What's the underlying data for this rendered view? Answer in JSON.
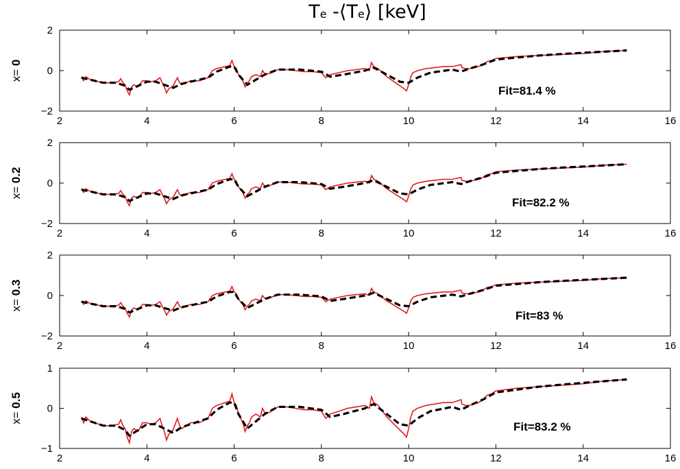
{
  "title": {
    "symbol": "T",
    "subscript": "e",
    "middle": " -⟨T",
    "subscript2": "e",
    "suffix": "⟩ [keV]"
  },
  "colors": {
    "measured": "#e41a1c",
    "fit": "#000000",
    "axes": "#000000"
  },
  "chart_data": [
    {
      "type": "line",
      "ylabel_prefix": "x= ",
      "ylabel_value": "0",
      "fit_label": "Fit=81.4 %",
      "xlim": [
        2,
        16
      ],
      "ylim": [
        -2,
        2
      ],
      "xticks": [
        2,
        4,
        6,
        8,
        10,
        12,
        14,
        16
      ],
      "yticks": [
        -2,
        0,
        2
      ],
      "amp": 1.0,
      "series": [
        {
          "style": "solid-red",
          "x": [
            2.5,
            2.55,
            2.6,
            2.7,
            2.8,
            3.0,
            3.2,
            3.35,
            3.4,
            3.45,
            3.5,
            3.55,
            3.6,
            3.65,
            3.7,
            3.8,
            3.9,
            4.0,
            4.1,
            4.2,
            4.3,
            4.35,
            4.4,
            4.45,
            4.5,
            4.6,
            4.7,
            4.75,
            4.8,
            4.9,
            5.0,
            5.2,
            5.4,
            5.5,
            5.6,
            5.8,
            5.9,
            5.95,
            6.0,
            6.05,
            6.1,
            6.2,
            6.25,
            6.3,
            6.35,
            6.4,
            6.5,
            6.6,
            6.65,
            6.7,
            6.8,
            7.0,
            7.2,
            7.4,
            7.6,
            7.8,
            8.0,
            8.1,
            8.2,
            8.4,
            8.6,
            8.8,
            9.0,
            9.1,
            9.15,
            9.2,
            9.3,
            9.5,
            9.7,
            9.8,
            9.9,
            9.95,
            10.0,
            10.05,
            10.1,
            10.2,
            10.4,
            10.6,
            10.8,
            11.0,
            11.2,
            11.22,
            11.3,
            11.4,
            11.6,
            11.7,
            11.8,
            11.9,
            12.0,
            12.5,
            13.0,
            13.5,
            14.0,
            14.5,
            15.0
          ],
          "y": [
            -0.3,
            -0.5,
            -0.3,
            -0.45,
            -0.5,
            -0.6,
            -0.6,
            -0.55,
            -0.4,
            -0.6,
            -0.7,
            -1.0,
            -1.2,
            -0.8,
            -0.7,
            -0.8,
            -0.5,
            -0.5,
            -0.55,
            -0.5,
            -0.35,
            -0.6,
            -0.8,
            -1.1,
            -0.9,
            -0.75,
            -0.35,
            -0.6,
            -0.7,
            -0.6,
            -0.5,
            -0.5,
            -0.35,
            0.0,
            0.1,
            0.2,
            0.25,
            0.5,
            0.2,
            0.1,
            -0.2,
            -0.5,
            -0.8,
            -0.6,
            -0.5,
            -0.3,
            -0.2,
            -0.3,
            0.0,
            -0.15,
            -0.15,
            0.05,
            0.05,
            0.0,
            -0.05,
            -0.05,
            -0.1,
            -0.35,
            -0.2,
            -0.1,
            0.0,
            0.05,
            0.1,
            0.0,
            0.4,
            0.2,
            0.1,
            -0.3,
            -0.6,
            -0.75,
            -0.9,
            -1.0,
            -0.7,
            -0.3,
            -0.1,
            0.0,
            0.1,
            0.15,
            0.2,
            0.2,
            0.3,
            0.15,
            0.1,
            0.1,
            0.2,
            0.3,
            0.45,
            0.5,
            0.6,
            0.7,
            0.75,
            0.8,
            0.85,
            0.95,
            1.0
          ]
        },
        {
          "style": "dashed-black",
          "x": [
            2.5,
            2.7,
            3.0,
            3.3,
            3.5,
            3.6,
            3.8,
            4.0,
            4.2,
            4.4,
            4.6,
            4.8,
            5.0,
            5.4,
            5.6,
            5.9,
            6.0,
            6.1,
            6.3,
            6.5,
            6.7,
            7.0,
            7.5,
            8.0,
            8.2,
            8.5,
            9.0,
            9.2,
            9.5,
            9.8,
            10.0,
            10.2,
            10.5,
            11.0,
            11.2,
            11.4,
            11.7,
            12.0,
            12.5,
            13.0,
            13.5,
            14.0,
            14.5,
            15.0
          ],
          "y": [
            -0.35,
            -0.45,
            -0.6,
            -0.6,
            -0.75,
            -0.95,
            -0.75,
            -0.55,
            -0.55,
            -0.7,
            -0.85,
            -0.65,
            -0.55,
            -0.35,
            -0.05,
            0.2,
            0.2,
            -0.2,
            -0.7,
            -0.45,
            -0.2,
            0.05,
            0.05,
            -0.05,
            -0.3,
            -0.2,
            0.0,
            0.15,
            -0.2,
            -0.55,
            -0.6,
            -0.35,
            -0.1,
            0.05,
            -0.05,
            0.1,
            0.3,
            0.55,
            0.65,
            0.75,
            0.82,
            0.88,
            0.94,
            1.0
          ]
        }
      ]
    },
    {
      "type": "line",
      "ylabel_prefix": "x= ",
      "ylabel_value": "0.2",
      "fit_label": "Fit=82.2 %",
      "xlim": [
        2,
        16
      ],
      "ylim": [
        -2,
        2
      ],
      "xticks": [
        2,
        4,
        6,
        8,
        10,
        12,
        14,
        16
      ],
      "yticks": [
        -2,
        0,
        2
      ],
      "amp": 0.93
    },
    {
      "type": "line",
      "ylabel_prefix": "x= ",
      "ylabel_value": "0.3",
      "fit_label": "Fit=83 %",
      "xlim": [
        2,
        16
      ],
      "ylim": [
        -2,
        2
      ],
      "xticks": [
        2,
        4,
        6,
        8,
        10,
        12,
        14,
        16
      ],
      "yticks": [
        -2,
        0,
        2
      ],
      "amp": 0.88
    },
    {
      "type": "line",
      "ylabel_prefix": "x= ",
      "ylabel_value": "0.5",
      "fit_label": "Fit=83.2 %",
      "xlim": [
        2,
        16
      ],
      "ylim": [
        -1,
        1
      ],
      "xticks": [
        2,
        4,
        6,
        8,
        10,
        12,
        14,
        16
      ],
      "yticks": [
        -1,
        0,
        1
      ],
      "amp": 0.72
    }
  ]
}
